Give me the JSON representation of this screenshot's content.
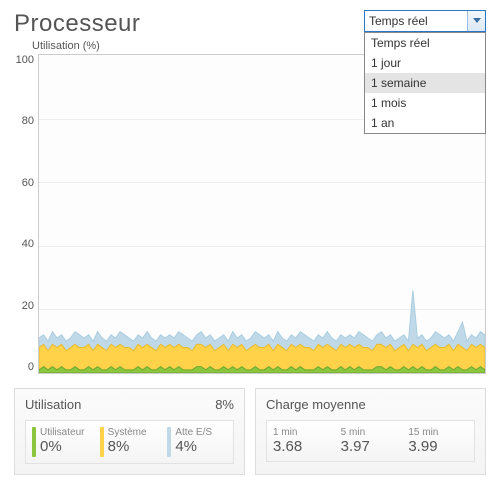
{
  "title": "Processeur",
  "dropdown": {
    "selected": "Temps réel",
    "options": [
      "Temps réel",
      "1 jour",
      "1 semaine",
      "1 mois",
      "1 an"
    ],
    "hover_index": 2
  },
  "chart": {
    "type": "area",
    "y_label": "Utilisation (%)",
    "ylim": [
      0,
      100
    ],
    "yticks": [
      100,
      80,
      60,
      40,
      20,
      0
    ],
    "background_color": "#fdfdfd",
    "grid_color": "#eeeeee",
    "border_color": "#cccccc",
    "series": [
      {
        "name": "iowait",
        "fill": "#bfd9e8",
        "stroke": "#a9cde1",
        "values": [
          11,
          12,
          10,
          13,
          11,
          12,
          10,
          11,
          13,
          12,
          11,
          12,
          10,
          13,
          11,
          10,
          12,
          11,
          13,
          12,
          11,
          10,
          12,
          11,
          13,
          11,
          10,
          12,
          11,
          12,
          11,
          13,
          12,
          11,
          10,
          12,
          13,
          11,
          12,
          10,
          11,
          12,
          10,
          13,
          11,
          12,
          10,
          11,
          13,
          12,
          11,
          12,
          10,
          13,
          11,
          10,
          12,
          11,
          13,
          12,
          11,
          10,
          12,
          11,
          13,
          11,
          10,
          12,
          11,
          12,
          11,
          13,
          12,
          11,
          10,
          12,
          13,
          11,
          12,
          10,
          11,
          12,
          10,
          26,
          11,
          12,
          10,
          11,
          13,
          12,
          11,
          12,
          10,
          13,
          16,
          10,
          12,
          11,
          13,
          12
        ]
      },
      {
        "name": "system",
        "fill": "#ffd24a",
        "stroke": "#e8bb2f",
        "values": [
          8,
          9,
          7,
          9,
          8,
          9,
          7,
          8,
          9,
          8,
          8,
          9,
          7,
          9,
          8,
          7,
          9,
          8,
          9,
          8,
          8,
          7,
          9,
          8,
          9,
          8,
          7,
          9,
          8,
          9,
          8,
          9,
          8,
          8,
          7,
          9,
          9,
          8,
          9,
          7,
          8,
          9,
          7,
          9,
          8,
          9,
          7,
          8,
          9,
          8,
          8,
          9,
          7,
          9,
          8,
          7,
          9,
          8,
          9,
          8,
          8,
          7,
          9,
          8,
          9,
          8,
          7,
          9,
          8,
          9,
          8,
          9,
          8,
          8,
          7,
          9,
          9,
          8,
          9,
          7,
          8,
          9,
          7,
          9,
          8,
          9,
          7,
          8,
          9,
          8,
          8,
          9,
          7,
          9,
          8,
          7,
          9,
          8,
          9,
          8
        ]
      },
      {
        "name": "user",
        "fill": "#8cc63f",
        "stroke": "#6fa82f",
        "values": [
          1,
          2,
          1,
          2,
          1,
          2,
          1,
          1,
          2,
          1,
          1,
          2,
          1,
          2,
          1,
          1,
          2,
          1,
          2,
          1,
          1,
          1,
          2,
          1,
          2,
          1,
          1,
          2,
          1,
          2,
          1,
          2,
          1,
          1,
          1,
          2,
          2,
          1,
          2,
          1,
          1,
          2,
          1,
          2,
          1,
          2,
          1,
          1,
          2,
          1,
          1,
          2,
          1,
          2,
          1,
          1,
          2,
          1,
          2,
          1,
          1,
          1,
          2,
          1,
          2,
          1,
          1,
          2,
          1,
          2,
          1,
          2,
          1,
          1,
          1,
          2,
          2,
          1,
          2,
          1,
          1,
          2,
          1,
          2,
          1,
          2,
          1,
          1,
          2,
          1,
          1,
          2,
          1,
          2,
          1,
          1,
          2,
          1,
          2,
          1
        ]
      }
    ]
  },
  "utilisation": {
    "title": "Utilisation",
    "total": "8%",
    "items": [
      {
        "label": "Utilisateur",
        "value": "0%",
        "color": "#8cc63f"
      },
      {
        "label": "Système",
        "value": "8%",
        "color": "#ffd24a"
      },
      {
        "label": "Atte E/S",
        "value": "4%",
        "color": "#bfd9e8"
      }
    ]
  },
  "load": {
    "title": "Charge moyenne",
    "items": [
      {
        "label": "1 min",
        "value": "3.68"
      },
      {
        "label": "5 min",
        "value": "3.97"
      },
      {
        "label": "15 min",
        "value": "3.99"
      }
    ]
  }
}
